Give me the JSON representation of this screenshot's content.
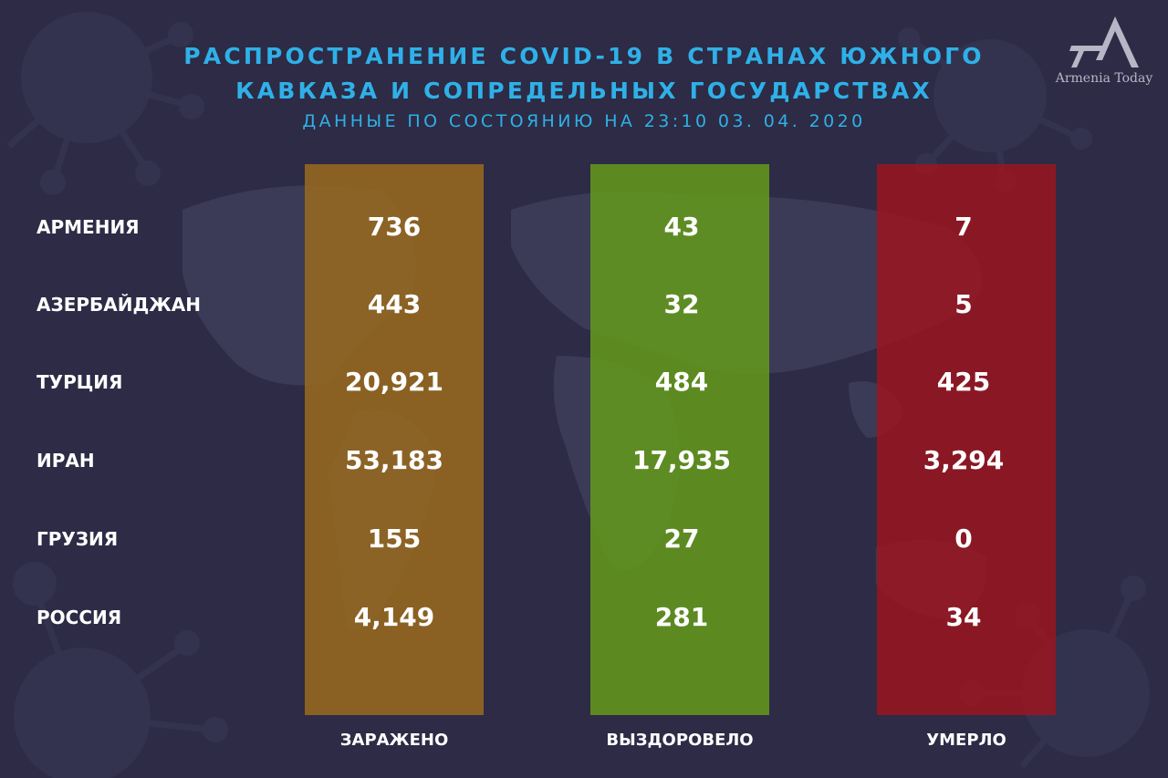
{
  "header": {
    "title_line1": "РАСПРОСТРАНЕНИЕ COVID-19 В СТРАНАХ ЮЖНОГО",
    "title_line2": "КАВКАЗА И СОПРЕДЕЛЬНЫХ ГОСУДАРСТВАХ",
    "subtitle": "ДАННЫЕ ПО СОСТОЯНИЮ НА 23:10  03. 04. 2020"
  },
  "logo": {
    "text": "Armenia Today",
    "icon": "armenia-today-logo-icon"
  },
  "columns": {
    "infected": "ЗАРАЖЕНО",
    "recovered": "ВЫЗДОРОВЕЛО",
    "deaths": "УМЕРЛО"
  },
  "rows": [
    {
      "country": "АРМЕНИЯ",
      "infected": "736",
      "recovered": "43",
      "deaths": "7"
    },
    {
      "country": "АЗЕРБАЙДЖАН",
      "infected": "443",
      "recovered": "32",
      "deaths": "5"
    },
    {
      "country": "ТУРЦИЯ",
      "infected": "20,921",
      "recovered": "484",
      "deaths": "425"
    },
    {
      "country": "ИРАН",
      "infected": "53,183",
      "recovered": "17,935",
      "deaths": "3,294"
    },
    {
      "country": "ГРУЗИЯ",
      "infected": "155",
      "recovered": "27",
      "deaths": "0"
    },
    {
      "country": "РОССИЯ",
      "infected": "4,149",
      "recovered": "281",
      "deaths": "34"
    }
  ],
  "colors": {
    "background": "#2d2b45",
    "title": "#2fb0e8",
    "infected": "#9a6a1e",
    "recovered": "#649a1c",
    "deaths": "#9a1520"
  }
}
